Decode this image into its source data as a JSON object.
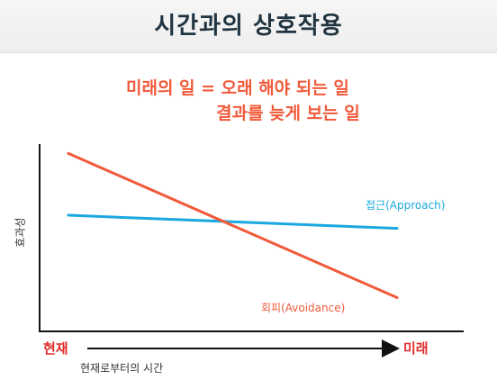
{
  "title": "시간과의 상호작용",
  "subtitle_line1": "미래의 일 = 오래 해야 되는 일",
  "subtitle_line2": "결과를 늦게 보는 일",
  "colors": {
    "approach": "#1aa8e0",
    "avoidance": "#f05a3a",
    "accent": "#e02a2a",
    "title": "#1f3340"
  },
  "chart_data": {
    "type": "line",
    "ylabel": "효과성",
    "xlabel": "현재로부터의 시간",
    "x_start_label": "현재",
    "x_end_label": "미래",
    "x": [
      0,
      1
    ],
    "series": [
      {
        "name": "접근(Approach)",
        "values": [
          0.62,
          0.55
        ],
        "color": "#1aa8e0"
      },
      {
        "name": "회피(Avoidance)",
        "values": [
          0.95,
          0.18
        ],
        "color": "#f05a3a"
      }
    ],
    "ylim": [
      0,
      1
    ],
    "grid": false,
    "legend": "inline"
  }
}
